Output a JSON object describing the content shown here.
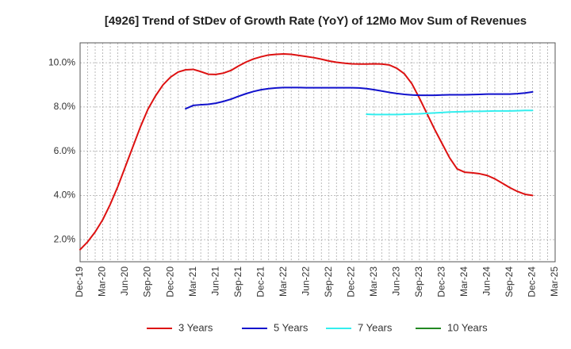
{
  "chart_data": {
    "type": "line",
    "title": "[4926]  Trend of StDev of Growth Rate (YoY) of 12Mo Mov Sum of Revenues",
    "xlabel": "",
    "ylabel": "",
    "x_tick_labels": [
      "Dec-19",
      "Mar-20",
      "Jun-20",
      "Sep-20",
      "Dec-20",
      "Mar-21",
      "Jun-21",
      "Sep-21",
      "Dec-21",
      "Mar-22",
      "Jun-22",
      "Sep-22",
      "Dec-22",
      "Mar-23",
      "Jun-23",
      "Sep-23",
      "Dec-23",
      "Mar-24",
      "Jun-24",
      "Sep-24",
      "Dec-24",
      "Mar-25"
    ],
    "y_tick_values": [
      2.0,
      4.0,
      6.0,
      8.0,
      10.0
    ],
    "y_tick_labels": [
      "2.0%",
      "4.0%",
      "6.0%",
      "8.0%",
      "10.0%"
    ],
    "ylim": [
      1.0,
      10.9
    ],
    "grid": true,
    "legend_position": "bottom",
    "series": [
      {
        "name": "3 Years",
        "color": "#dd1111",
        "x": [
          0,
          1,
          2,
          3,
          4,
          5,
          6,
          7,
          8,
          9,
          10,
          11,
          12,
          13,
          14,
          15,
          16,
          17,
          18,
          19,
          20,
          21,
          22,
          23,
          24,
          25,
          26,
          27,
          28,
          29,
          30,
          31,
          32,
          33,
          34,
          35,
          36,
          37,
          38,
          39,
          40,
          41,
          42,
          43,
          44,
          45,
          46,
          47,
          48,
          49,
          50,
          51,
          52,
          53,
          54,
          55,
          56,
          57,
          58,
          59,
          60
        ],
        "values": [
          1.55,
          1.9,
          2.35,
          2.9,
          3.6,
          4.4,
          5.3,
          6.2,
          7.1,
          7.9,
          8.5,
          9.0,
          9.35,
          9.58,
          9.68,
          9.7,
          9.6,
          9.48,
          9.47,
          9.53,
          9.65,
          9.85,
          10.03,
          10.17,
          10.27,
          10.35,
          10.38,
          10.4,
          10.38,
          10.33,
          10.28,
          10.23,
          10.16,
          10.08,
          10.02,
          9.98,
          9.95,
          9.94,
          9.94,
          9.95,
          9.94,
          9.9,
          9.75,
          9.5,
          9.05,
          8.4,
          7.7,
          7.0,
          6.35,
          5.7,
          5.2,
          5.05,
          5.02,
          4.98,
          4.9,
          4.75,
          4.55,
          4.35,
          4.18,
          4.05,
          4.0
        ]
      },
      {
        "name": "5 Years",
        "color": "#1111cc",
        "x": [
          14,
          15,
          16,
          17,
          18,
          19,
          20,
          21,
          22,
          23,
          24,
          25,
          26,
          27,
          28,
          29,
          30,
          31,
          32,
          33,
          34,
          35,
          36,
          37,
          38,
          39,
          40,
          41,
          42,
          43,
          44,
          45,
          46,
          47,
          48,
          49,
          50,
          51,
          52,
          53,
          54,
          55,
          56,
          57,
          58,
          59,
          60
        ],
        "values": [
          7.92,
          8.07,
          8.1,
          8.12,
          8.17,
          8.25,
          8.35,
          8.48,
          8.6,
          8.7,
          8.78,
          8.83,
          8.86,
          8.88,
          8.88,
          8.88,
          8.87,
          8.87,
          8.87,
          8.87,
          8.87,
          8.87,
          8.87,
          8.86,
          8.83,
          8.78,
          8.72,
          8.66,
          8.61,
          8.57,
          8.54,
          8.53,
          8.53,
          8.53,
          8.54,
          8.55,
          8.55,
          8.55,
          8.56,
          8.57,
          8.58,
          8.58,
          8.58,
          8.58,
          8.6,
          8.63,
          8.68
        ]
      },
      {
        "name": "7 Years",
        "color": "#33eeee",
        "x": [
          38,
          39,
          40,
          41,
          42,
          43,
          44,
          45,
          46,
          47,
          48,
          49,
          50,
          51,
          52,
          53,
          54,
          55,
          56,
          57,
          58,
          59,
          60
        ],
        "values": [
          7.67,
          7.66,
          7.66,
          7.66,
          7.66,
          7.67,
          7.68,
          7.69,
          7.71,
          7.73,
          7.75,
          7.77,
          7.78,
          7.79,
          7.8,
          7.8,
          7.81,
          7.82,
          7.82,
          7.82,
          7.83,
          7.84,
          7.84
        ]
      },
      {
        "name": "10 Years",
        "color": "#228822",
        "x": [],
        "values": []
      }
    ]
  }
}
